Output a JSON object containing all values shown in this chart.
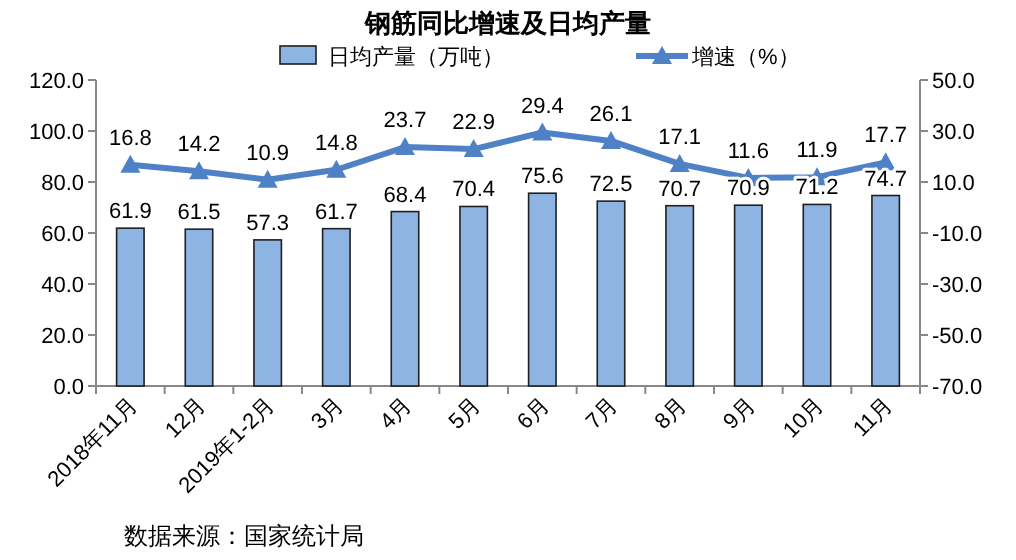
{
  "chart_data": {
    "type": "bar",
    "title": "钢筋同比增速及日均产量",
    "categories": [
      "2018年11月",
      "12月",
      "2019年1-2月",
      "3月",
      "4月",
      "5月",
      "6月",
      "7月",
      "8月",
      "9月",
      "10月",
      "11月"
    ],
    "series": [
      {
        "name": "日均产量（万吨）",
        "color": "#8eb4e3",
        "values": [
          61.9,
          61.5,
          57.3,
          61.7,
          68.4,
          70.4,
          75.6,
          72.5,
          70.7,
          70.9,
          71.2,
          74.7
        ]
      },
      {
        "name": "增速（%）",
        "type": "line",
        "axis": "y2",
        "color": "#4f81c7",
        "marker": "triangle",
        "values": [
          16.8,
          14.2,
          10.9,
          14.8,
          23.7,
          22.9,
          29.4,
          26.1,
          17.1,
          11.6,
          11.9,
          17.7
        ]
      }
    ],
    "ylim": [
      0,
      120
    ],
    "yticks": [
      {
        "value": 0,
        "label": "0.0"
      },
      {
        "value": 20,
        "label": "20.0"
      },
      {
        "value": 40,
        "label": "40.0"
      },
      {
        "value": 60,
        "label": "60.0"
      },
      {
        "value": 80,
        "label": "80.0"
      },
      {
        "value": 100,
        "label": "100.0"
      },
      {
        "value": 120,
        "label": "120.0"
      }
    ],
    "y2lim": [
      -70,
      50
    ],
    "y2ticks": [
      {
        "value": -70,
        "label": "-70.0"
      },
      {
        "value": -50,
        "label": "-50.0"
      },
      {
        "value": -30,
        "label": "-30.0"
      },
      {
        "value": -10,
        "label": "-10.0"
      },
      {
        "value": 10,
        "label": "10.0"
      },
      {
        "value": 30,
        "label": "30.0"
      },
      {
        "value": 50,
        "label": "50.0"
      }
    ],
    "data_labels": true,
    "legend": "top",
    "annotations": [
      "数据来源：国家统计局"
    ]
  }
}
